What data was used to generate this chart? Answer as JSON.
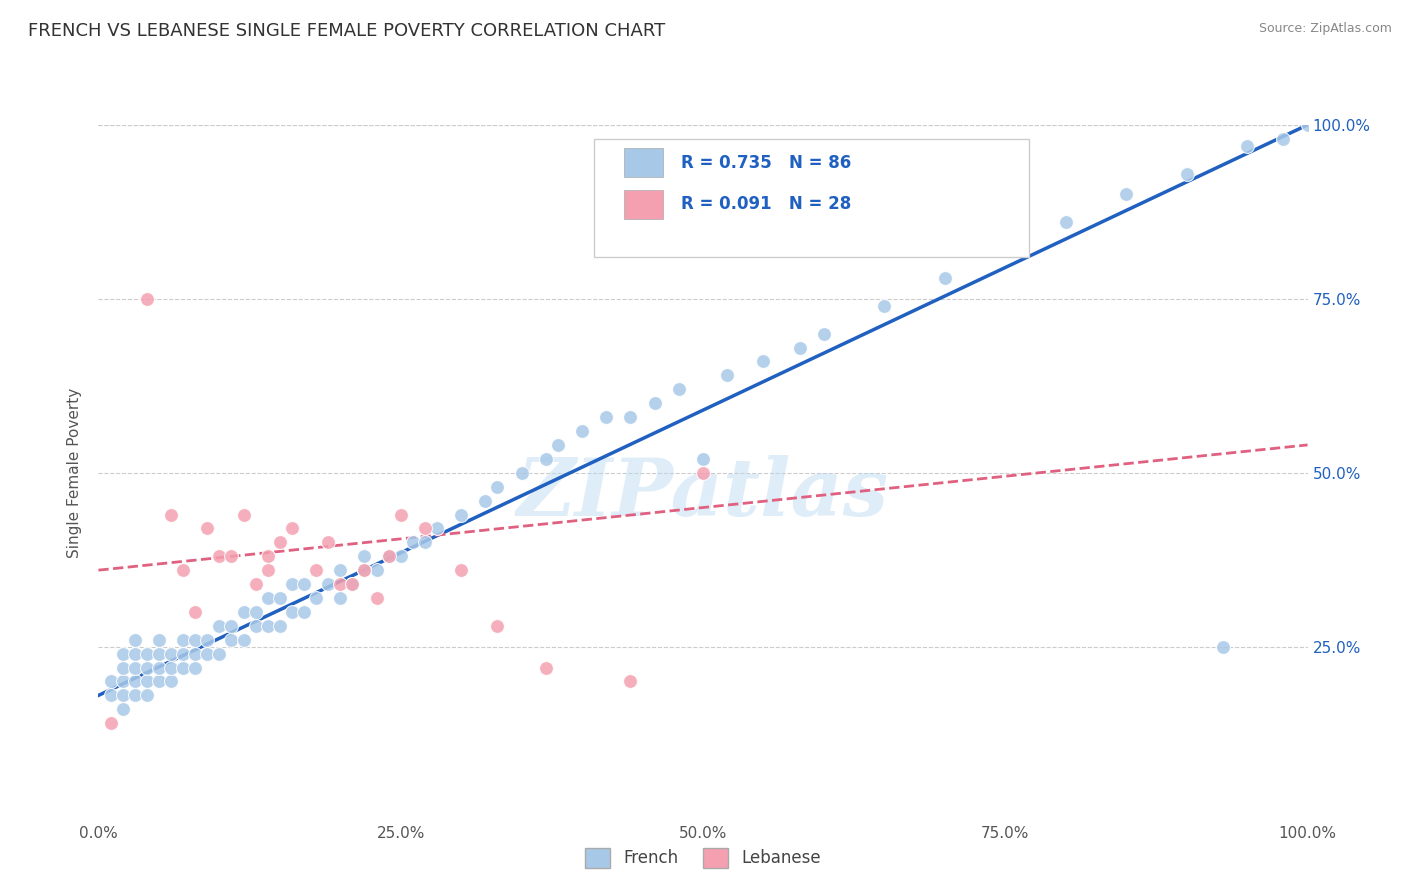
{
  "title": "FRENCH VS LEBANESE SINGLE FEMALE POVERTY CORRELATION CHART",
  "source": "Source: ZipAtlas.com",
  "ylabel": "Single Female Poverty",
  "xlim": [
    0.0,
    1.0
  ],
  "ylim": [
    0.0,
    1.0
  ],
  "x_tick_labels": [
    "0.0%",
    "25.0%",
    "50.0%",
    "75.0%",
    "100.0%"
  ],
  "x_tick_positions": [
    0.0,
    0.25,
    0.5,
    0.75,
    1.0
  ],
  "y_tick_labels": [
    "25.0%",
    "50.0%",
    "75.0%",
    "100.0%"
  ],
  "y_tick_positions": [
    0.25,
    0.5,
    0.75,
    1.0
  ],
  "french_color": "#a8c8e8",
  "lebanese_color": "#f4a0b0",
  "french_line_color": "#2060c0",
  "lebanese_line_color": "#e06080",
  "watermark": "ZIPatlas",
  "legend_R_french": "R = 0.735",
  "legend_N_french": "N = 86",
  "legend_R_lebanese": "R = 0.091",
  "legend_N_lebanese": "N = 28",
  "french_x": [
    0.01,
    0.01,
    0.02,
    0.02,
    0.02,
    0.02,
    0.02,
    0.03,
    0.03,
    0.03,
    0.03,
    0.03,
    0.04,
    0.04,
    0.04,
    0.04,
    0.05,
    0.05,
    0.05,
    0.05,
    0.06,
    0.06,
    0.06,
    0.07,
    0.07,
    0.07,
    0.08,
    0.08,
    0.08,
    0.09,
    0.09,
    0.1,
    0.1,
    0.11,
    0.11,
    0.12,
    0.12,
    0.13,
    0.13,
    0.14,
    0.14,
    0.15,
    0.15,
    0.16,
    0.16,
    0.17,
    0.17,
    0.18,
    0.19,
    0.2,
    0.2,
    0.21,
    0.22,
    0.22,
    0.23,
    0.24,
    0.25,
    0.26,
    0.27,
    0.28,
    0.3,
    0.32,
    0.33,
    0.35,
    0.37,
    0.38,
    0.4,
    0.42,
    0.44,
    0.46,
    0.48,
    0.5,
    0.52,
    0.55,
    0.58,
    0.6,
    0.65,
    0.7,
    0.75,
    0.8,
    0.85,
    0.9,
    0.93,
    0.95,
    0.98,
    1.0
  ],
  "french_y": [
    0.18,
    0.2,
    0.16,
    0.18,
    0.2,
    0.22,
    0.24,
    0.18,
    0.2,
    0.22,
    0.24,
    0.26,
    0.18,
    0.2,
    0.22,
    0.24,
    0.2,
    0.22,
    0.24,
    0.26,
    0.2,
    0.22,
    0.24,
    0.22,
    0.24,
    0.26,
    0.22,
    0.24,
    0.26,
    0.24,
    0.26,
    0.24,
    0.28,
    0.26,
    0.28,
    0.26,
    0.3,
    0.28,
    0.3,
    0.28,
    0.32,
    0.28,
    0.32,
    0.3,
    0.34,
    0.3,
    0.34,
    0.32,
    0.34,
    0.32,
    0.36,
    0.34,
    0.36,
    0.38,
    0.36,
    0.38,
    0.38,
    0.4,
    0.4,
    0.42,
    0.44,
    0.46,
    0.48,
    0.5,
    0.52,
    0.54,
    0.56,
    0.58,
    0.58,
    0.6,
    0.62,
    0.52,
    0.64,
    0.66,
    0.68,
    0.7,
    0.74,
    0.78,
    0.82,
    0.86,
    0.9,
    0.93,
    0.25,
    0.97,
    0.98,
    1.0
  ],
  "lebanese_x": [
    0.01,
    0.04,
    0.06,
    0.07,
    0.08,
    0.09,
    0.1,
    0.11,
    0.12,
    0.13,
    0.14,
    0.14,
    0.15,
    0.16,
    0.18,
    0.19,
    0.2,
    0.21,
    0.22,
    0.23,
    0.24,
    0.25,
    0.27,
    0.3,
    0.33,
    0.37,
    0.44,
    0.5
  ],
  "lebanese_y": [
    0.14,
    0.75,
    0.44,
    0.36,
    0.3,
    0.42,
    0.38,
    0.38,
    0.44,
    0.34,
    0.36,
    0.38,
    0.4,
    0.42,
    0.36,
    0.4,
    0.34,
    0.34,
    0.36,
    0.32,
    0.38,
    0.44,
    0.42,
    0.36,
    0.28,
    0.22,
    0.2,
    0.5
  ],
  "french_line_x": [
    0.0,
    1.0
  ],
  "french_line_y": [
    0.18,
    1.0
  ],
  "lebanese_line_x": [
    0.0,
    1.0
  ],
  "lebanese_line_y": [
    0.36,
    0.54
  ]
}
